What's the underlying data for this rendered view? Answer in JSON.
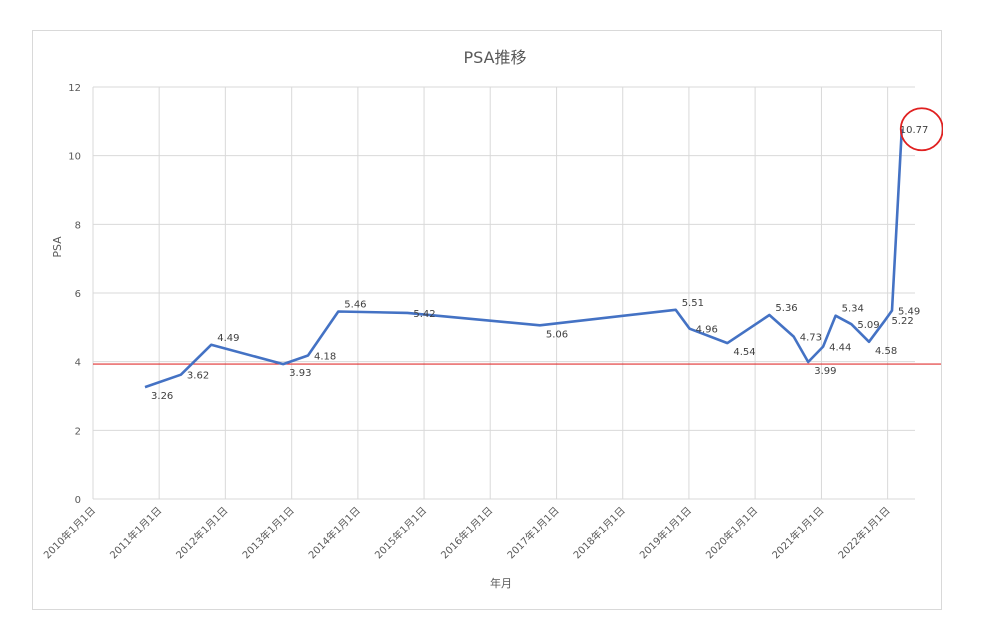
{
  "chart_data": {
    "type": "line",
    "title": "PSA推移",
    "xlabel": "年月",
    "ylabel": "PSA",
    "ylim": [
      0,
      12
    ],
    "y_ticks": [
      0,
      2,
      4,
      6,
      8,
      10,
      12
    ],
    "x_ticks": [
      "2010年1月1日",
      "2011年1月1日",
      "2012年1月1日",
      "2013年1月1日",
      "2014年1月1日",
      "2015年1月1日",
      "2016年1月1日",
      "2017年1月1日",
      "2018年1月1日",
      "2019年1月1日",
      "2020年1月1日",
      "2021年1月1日",
      "2022年1月1日"
    ],
    "grid": true,
    "reference_line": {
      "y": 3.93
    },
    "highlight": {
      "value": 10.77
    },
    "series": [
      {
        "color": "#4472c4",
        "points": [
          {
            "x": "2010-10-15",
            "y": 3.26,
            "label": "3.26"
          },
          {
            "x": "2011-05-01",
            "y": 3.62,
            "label": "3.62"
          },
          {
            "x": "2011-10-15",
            "y": 4.49,
            "label": "4.49"
          },
          {
            "x": "2012-11-15",
            "y": 3.93,
            "label": "3.93"
          },
          {
            "x": "2013-04-01",
            "y": 4.18,
            "label": "4.18"
          },
          {
            "x": "2013-09-15",
            "y": 5.46,
            "label": "5.46"
          },
          {
            "x": "2014-10-01",
            "y": 5.42,
            "label": "5.42"
          },
          {
            "x": "2016-10-01",
            "y": 5.06,
            "label": "5.06"
          },
          {
            "x": "2018-10-20",
            "y": 5.51,
            "label": "5.51"
          },
          {
            "x": "2019-01-05",
            "y": 4.96,
            "label": "4.96"
          },
          {
            "x": "2019-08-01",
            "y": 4.54,
            "label": "4.54"
          },
          {
            "x": "2020-03-20",
            "y": 5.36,
            "label": "5.36"
          },
          {
            "x": "2020-08-01",
            "y": 4.73,
            "label": "4.73"
          },
          {
            "x": "2020-10-20",
            "y": 3.99,
            "label": "3.99"
          },
          {
            "x": "2021-01-10",
            "y": 4.44,
            "label": "4.44"
          },
          {
            "x": "2021-03-20",
            "y": 5.34,
            "label": "5.34"
          },
          {
            "x": "2021-06-15",
            "y": 5.09,
            "label": "5.09"
          },
          {
            "x": "2021-09-20",
            "y": 4.58,
            "label": "4.58"
          },
          {
            "x": "2021-12-20",
            "y": 5.22,
            "label": "5.22"
          },
          {
            "x": "2022-01-25",
            "y": 5.49,
            "label": "5.49"
          },
          {
            "x": "2022-03-20",
            "y": 10.77,
            "label": "10.77"
          }
        ]
      }
    ]
  },
  "colors": {
    "series": "#4472c4",
    "reference_line": "#e03030",
    "highlight_circle": "#e02020",
    "grid": "#d9d9d9",
    "text": "#595959"
  }
}
